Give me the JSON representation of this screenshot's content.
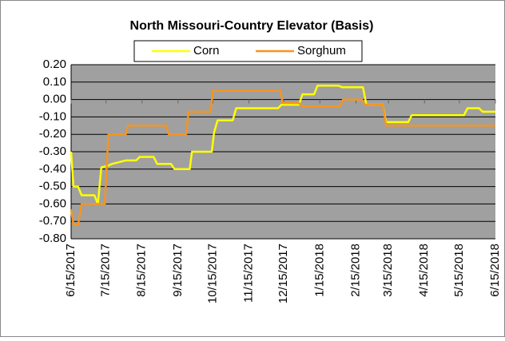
{
  "chart_data": {
    "type": "line",
    "title": "North Missouri-Country Elevator (Basis)",
    "legend": "top",
    "grid": true,
    "background": "#a0a0a0",
    "ylim": [
      -0.8,
      0.2
    ],
    "yticks": [
      {
        "value": 0.2,
        "label": "0.20"
      },
      {
        "value": 0.1,
        "label": "0.10"
      },
      {
        "value": 0,
        "label": "0.00"
      },
      {
        "value": -0.1,
        "label": "-0.10"
      },
      {
        "value": -0.2,
        "label": "-0.20"
      },
      {
        "value": -0.3,
        "label": "-0.30"
      },
      {
        "value": -0.4,
        "label": "-0.40"
      },
      {
        "value": -0.5,
        "label": "-0.50"
      },
      {
        "value": -0.6,
        "label": "-0.60"
      },
      {
        "value": -0.7,
        "label": "-0.70"
      },
      {
        "value": -0.8,
        "label": "-0.80"
      }
    ],
    "xlim": [
      "6/15/2017",
      "6/15/2018"
    ],
    "xticks": [
      "6/15/2017",
      "7/15/2017",
      "8/15/2017",
      "9/15/2017",
      "10/15/2017",
      "11/15/2017",
      "12/15/2017",
      "1/15/2018",
      "2/15/2018",
      "3/15/2018",
      "4/15/2018",
      "5/15/2018",
      "6/15/2018"
    ],
    "series": [
      {
        "name": "Corn",
        "color": "#ffff00",
        "x": [
          "6/15/2017",
          "6/17/2017",
          "6/21/2017",
          "6/24/2017",
          "7/5/2017",
          "7/8/2017",
          "7/11/2017",
          "7/17/2017",
          "7/20/2017",
          "8/1/2017",
          "8/10/2017",
          "8/13/2017",
          "8/25/2017",
          "8/28/2017",
          "9/9/2017",
          "9/12/2017",
          "9/25/2017",
          "9/27/2017",
          "10/14/2017",
          "10/16/2017",
          "10/19/2017",
          "11/1/2017",
          "11/4/2017",
          "12/10/2017",
          "12/13/2017",
          "12/28/2017",
          "12/31/2017",
          "1/10/2018",
          "1/13/2018",
          "1/31/2018",
          "2/3/2018",
          "2/21/2018",
          "2/24/2018",
          "3/10/2018",
          "3/13/2018",
          "4/1/2018",
          "4/4/2018",
          "5/19/2018",
          "5/22/2018",
          "6/1/2018",
          "6/4/2018",
          "6/15/2018"
        ],
        "values": [
          -0.3,
          -0.5,
          -0.5,
          -0.55,
          -0.55,
          -0.6,
          -0.39,
          -0.38,
          -0.37,
          -0.35,
          -0.35,
          -0.33,
          -0.33,
          -0.37,
          -0.37,
          -0.4,
          -0.4,
          -0.3,
          -0.3,
          -0.19,
          -0.12,
          -0.12,
          -0.05,
          -0.05,
          -0.03,
          -0.03,
          0.03,
          0.03,
          0.08,
          0.08,
          0.07,
          0.07,
          -0.03,
          -0.03,
          -0.13,
          -0.13,
          -0.09,
          -0.09,
          -0.05,
          -0.05,
          -0.07,
          -0.07
        ]
      },
      {
        "name": "Sorghum",
        "color": "#f7941d",
        "x": [
          "6/15/2017",
          "6/17/2017",
          "6/21/2017",
          "6/24/2017",
          "7/14/2017",
          "7/17/2017",
          "8/1/2017",
          "8/3/2017",
          "9/5/2017",
          "9/7/2017",
          "9/22/2017",
          "9/24/2017",
          "10/13/2017",
          "10/15/2017",
          "12/12/2017",
          "12/14/2017",
          "12/28/2017",
          "12/31/2017",
          "2/1/2018",
          "2/4/2018",
          "2/20/2018",
          "2/23/2018",
          "3/10/2018",
          "3/13/2018",
          "6/15/2018"
        ],
        "values": [
          -0.63,
          -0.72,
          -0.72,
          -0.6,
          -0.6,
          -0.2,
          -0.2,
          -0.15,
          -0.15,
          -0.2,
          -0.2,
          -0.07,
          -0.07,
          0.05,
          0.05,
          -0.02,
          -0.02,
          -0.04,
          -0.04,
          0,
          0,
          -0.03,
          -0.03,
          -0.15,
          -0.15
        ]
      }
    ]
  }
}
